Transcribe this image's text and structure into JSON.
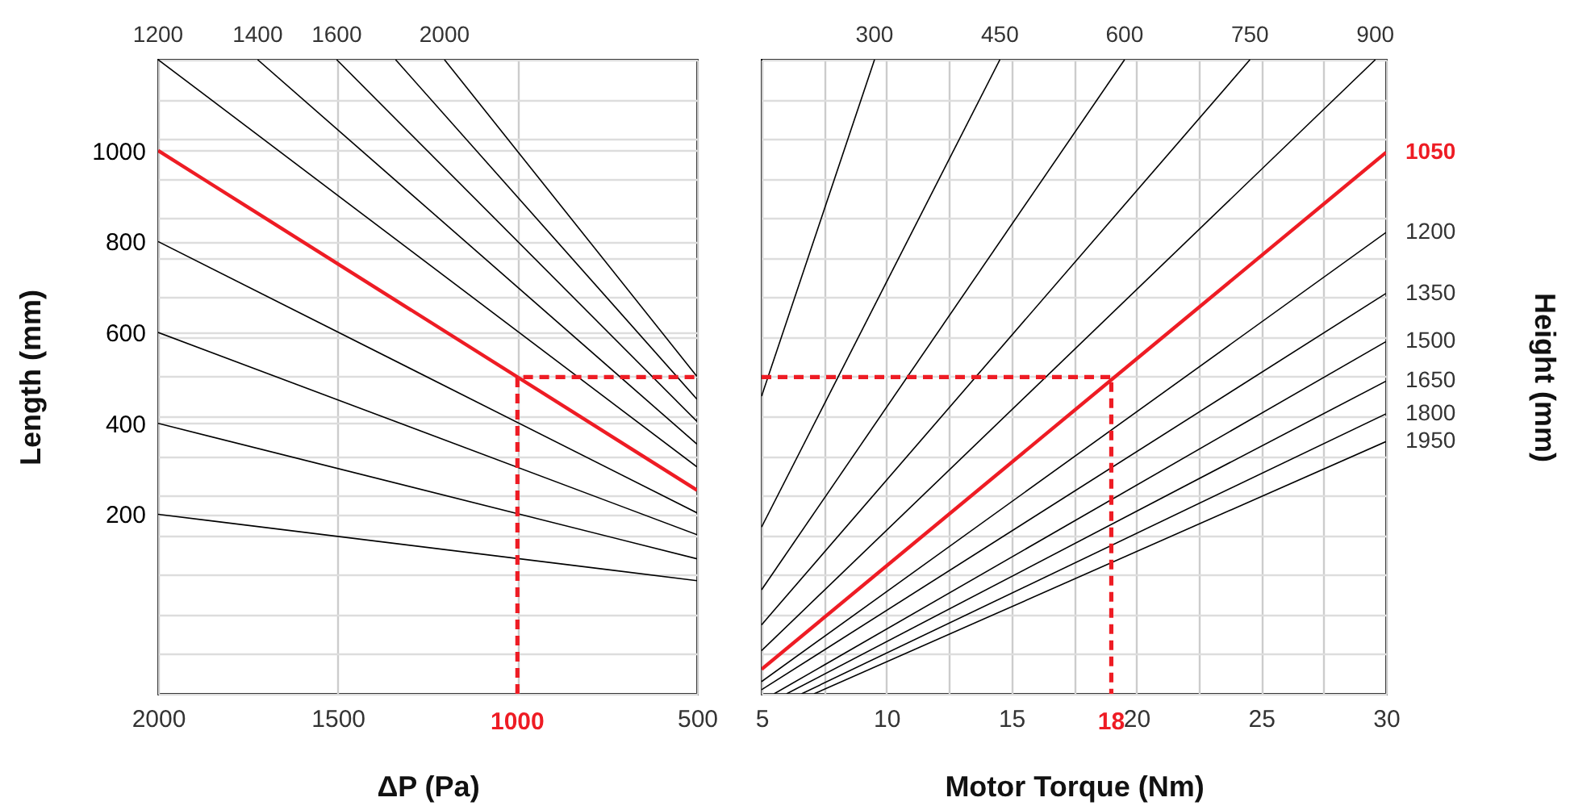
{
  "chart_data": [
    {
      "type": "line",
      "xlabel": "ΔP (Pa)",
      "ylabel": "Length (mm)",
      "xlim": [
        2000,
        500
      ],
      "ylim": [
        -195,
        1200
      ],
      "xticks": [
        2000,
        1500,
        {
          "value": 1000,
          "label": null
        },
        500
      ],
      "yticks": [
        {
          "value": -195,
          "label": null
        },
        {
          "value": -108,
          "label": null
        },
        {
          "value": -21,
          "label": null
        },
        {
          "value": 67,
          "label": null
        },
        {
          "value": 154,
          "label": null
        },
        200,
        {
          "value": 241,
          "label": null
        },
        {
          "value": 328,
          "label": null
        },
        400,
        {
          "value": 416,
          "label": null
        },
        {
          "value": 503,
          "label": null
        },
        {
          "value": 590,
          "label": null
        },
        600,
        {
          "value": 677,
          "label": null
        },
        {
          "value": 764,
          "label": null
        },
        800,
        {
          "value": 851,
          "label": null
        },
        {
          "value": 939,
          "label": null
        },
        1000,
        {
          "value": 1026,
          "label": null
        },
        {
          "value": 1113,
          "label": null
        },
        {
          "value": 1200,
          "label": null
        }
      ],
      "grid": true,
      "series": [
        {
          "color": "#000000",
          "x": [
            2000,
            500
          ],
          "values": [
            200,
            54
          ]
        },
        {
          "color": "#000000",
          "x": [
            2000,
            500
          ],
          "values": [
            400,
            102
          ]
        },
        {
          "color": "#000000",
          "x": [
            2000,
            500
          ],
          "values": [
            600,
            155
          ]
        },
        {
          "color": "#000000",
          "x": [
            2000,
            500
          ],
          "values": [
            800,
            203
          ]
        },
        {
          "color": "#ee1c24",
          "x": [
            2000,
            500
          ],
          "values": [
            1000,
            253
          ]
        },
        {
          "name": "1200",
          "color": "#000000",
          "x": [
            2000,
            500
          ],
          "values": [
            1200,
            304
          ]
        },
        {
          "name": "1400",
          "color": "#000000",
          "x": [
            1723,
            500
          ],
          "values": [
            1200,
            354
          ]
        },
        {
          "name": "1600",
          "color": "#000000",
          "x": [
            1503,
            500
          ],
          "values": [
            1200,
            404
          ]
        },
        {
          "color": "#000000",
          "x": [
            1339,
            500
          ],
          "values": [
            1200,
            453
          ]
        },
        {
          "name": "2000",
          "color": "#000000",
          "x": [
            1203,
            500
          ],
          "values": [
            1200,
            503
          ]
        },
        {
          "color": "#ee1c24",
          "line_style": "dashed",
          "x": [
            1000,
            1000,
            500
          ],
          "values": [
            -195,
            502,
            502
          ]
        }
      ],
      "annotations": [
        {
          "text": "1000",
          "x": 1000,
          "y": -195
        }
      ]
    },
    {
      "type": "line",
      "xlabel": "Motor Torque (Nm)",
      "y2label": "Height (mm)",
      "xlim": [
        5,
        30
      ],
      "ylim": [
        -195,
        1200
      ],
      "xticks": [
        5,
        {
          "value": 7.5,
          "label": null
        },
        10,
        {
          "value": 12.5,
          "label": null
        },
        15,
        {
          "value": 17.5,
          "label": null
        },
        20,
        {
          "value": 22.5,
          "label": null
        },
        25,
        {
          "value": 27.5,
          "label": null
        },
        30
      ],
      "yticks": [
        {
          "value": -195,
          "label": null
        },
        {
          "value": -108,
          "label": null
        },
        {
          "value": -21,
          "label": null
        },
        {
          "value": 67,
          "label": null
        },
        {
          "value": 154,
          "label": null
        },
        {
          "value": 241,
          "label": null
        },
        {
          "value": 328,
          "label": null
        },
        {
          "value": 416,
          "label": null
        },
        {
          "value": 503,
          "label": null
        },
        {
          "value": 590,
          "label": null
        },
        {
          "value": 677,
          "label": null
        },
        {
          "value": 764,
          "label": null
        },
        {
          "value": 851,
          "label": null
        },
        {
          "value": 939,
          "label": null
        },
        {
          "value": 1026,
          "label": null
        },
        {
          "value": 1113,
          "label": null
        },
        {
          "value": 1200,
          "label": null
        }
      ],
      "tick_labels": "x",
      "grid": true,
      "series": [
        {
          "name": "300",
          "color": "#000000",
          "x": [
            5,
            9.52
          ],
          "values": [
            460,
            1200
          ]
        },
        {
          "name": "450",
          "color": "#000000",
          "x": [
            5,
            14.54
          ],
          "values": [
            172,
            1200
          ]
        },
        {
          "name": "600",
          "color": "#000000",
          "x": [
            5,
            19.53
          ],
          "values": [
            34,
            1200
          ]
        },
        {
          "name": "750",
          "color": "#000000",
          "x": [
            5,
            24.55
          ],
          "values": [
            -43,
            1200
          ]
        },
        {
          "name": "900",
          "color": "#000000",
          "x": [
            5,
            29.57
          ],
          "values": [
            -100,
            1200
          ]
        },
        {
          "name": "1050",
          "color": "#ee1c24",
          "x": [
            5,
            30
          ],
          "values": [
            -141,
            996
          ]
        },
        {
          "name": "1200",
          "color": "#000000",
          "x": [
            5,
            30
          ],
          "values": [
            -168,
            820
          ]
        },
        {
          "name": "1350",
          "color": "#000000",
          "x": [
            5,
            30
          ],
          "values": [
            -186,
            686
          ]
        },
        {
          "name": "1500",
          "color": "#000000",
          "x": [
            5.5,
            30
          ],
          "values": [
            -195,
            580
          ]
        },
        {
          "name": "1650",
          "color": "#000000",
          "x": [
            6.0,
            30
          ],
          "values": [
            -195,
            493
          ]
        },
        {
          "name": "1800",
          "color": "#000000",
          "x": [
            6.6,
            30
          ],
          "values": [
            -195,
            421
          ]
        },
        {
          "name": "1950",
          "color": "#000000",
          "x": [
            7.1,
            30
          ],
          "values": [
            -195,
            360
          ]
        },
        {
          "color": "#ee1c24",
          "line_style": "dashed",
          "x": [
            5,
            19,
            19
          ],
          "values": [
            502,
            502,
            -195
          ]
        }
      ],
      "annotations": [
        {
          "text": "18",
          "x": 19,
          "y": -195
        }
      ]
    }
  ]
}
